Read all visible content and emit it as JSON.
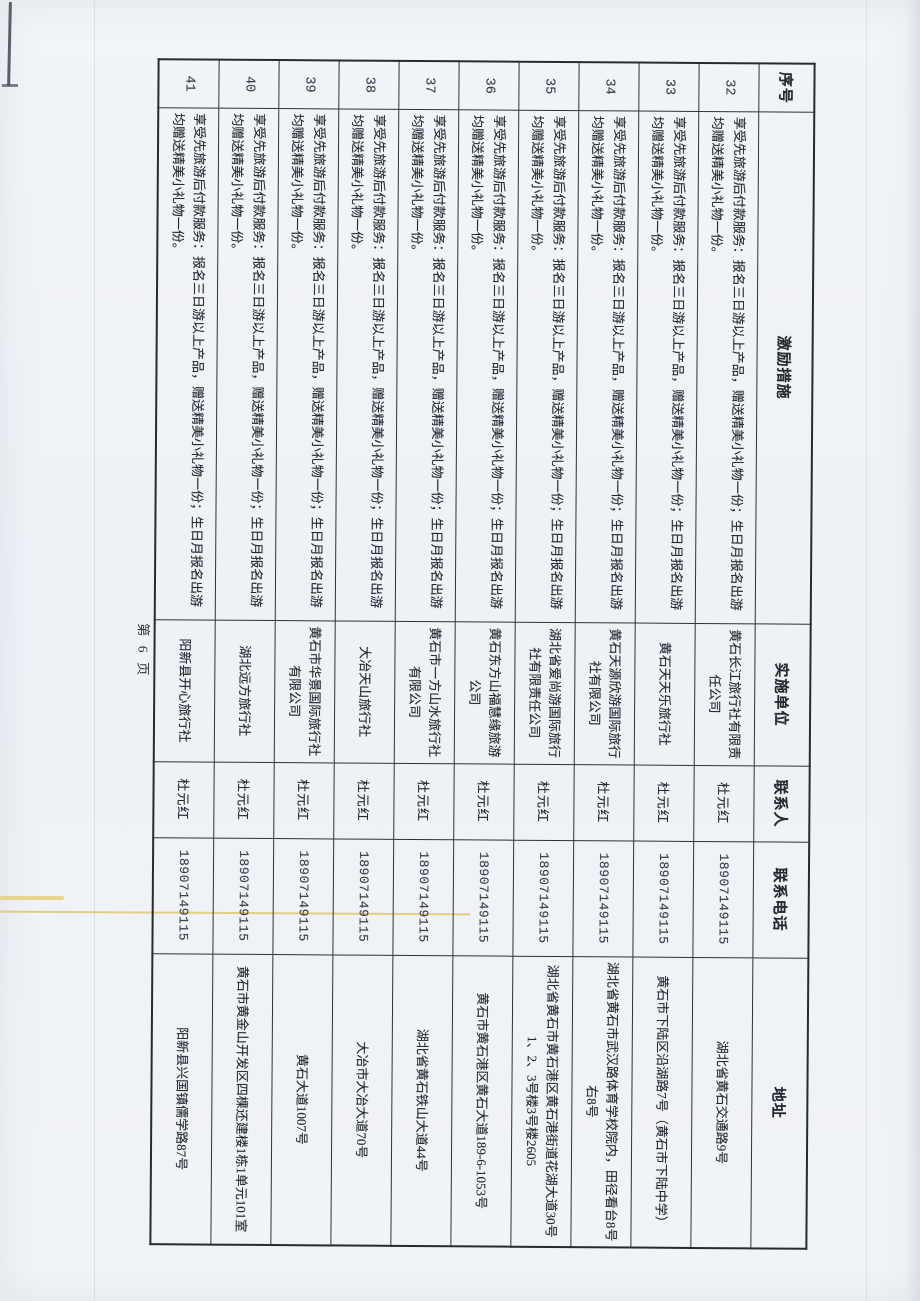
{
  "page": {
    "footer": "第 6 页",
    "page_number": "6"
  },
  "colors": {
    "paper": "#eff2f6",
    "ink": "#262a30",
    "border": "#2e3238",
    "highlight_streak": "#dbb534"
  },
  "table": {
    "columns": [
      "序号",
      "激励措施",
      "实施单位",
      "联系人",
      "联系电话",
      "地址"
    ],
    "rows": [
      {
        "no": "32",
        "incentive": "享受先旅游后付款服务：报名三日游以上产品，赠送精美小礼物一份；生日月报名出游均赠送精美小礼物一份。",
        "unit": "黄石长江旅行社有限责任公司",
        "contact": "杜元红",
        "phone": "18907149115",
        "address": "湖北省黄石交通路9号"
      },
      {
        "no": "33",
        "incentive": "享受先旅游后付款服务：报名三日游以上产品，赠送精美小礼物一份；生日月报名出游均赠送精美小礼物一份。",
        "unit": "黄石天天乐旅行社",
        "contact": "杜元红",
        "phone": "18907149115",
        "address": "黄石市下陆区沿湖路7号（黄石市下陆中学）"
      },
      {
        "no": "34",
        "incentive": "享受先旅游后付款服务：报名三日游以上产品，赠送精美小礼物一份；生日月报名出游均赠送精美小礼物一份。",
        "unit": "黄石天源欣游国际旅行社有限公司",
        "contact": "杜元红",
        "phone": "18907149115",
        "address": "湖北省黄石市武汉路体育学校院内，田径看台8号右8号"
      },
      {
        "no": "35",
        "incentive": "享受先旅游后付款服务：报名三日游以上产品，赠送精美小礼物一份；生日月报名出游均赠送精美小礼物一份。",
        "unit": "湖北省爱尚游国际旅行社有限责任公司",
        "contact": "杜元红",
        "phone": "18907149115",
        "address": "湖北省黄石市黄石港区黄石港街道花湖大道30号1、2、3号楼3号楼2605"
      },
      {
        "no": "36",
        "incentive": "享受先旅游后付款服务：报名三日游以上产品，赠送精美小礼物一份；生日月报名出游均赠送精美小礼物一份。",
        "unit": "黄石东方山福慧缘旅游公司",
        "contact": "杜元红",
        "phone": "18907149115",
        "address": "黄石市黄石港区黄石大道189-6-1053号"
      },
      {
        "no": "37",
        "incentive": "享受先旅游后付款服务：报名三日游以上产品，赠送精美小礼物一份；生日月报名出游均赠送精美小礼物一份。",
        "unit": "黄石市一方山水旅行社有限公司",
        "contact": "杜元红",
        "phone": "18907149115",
        "address": "湖北省黄石铁山大道44号"
      },
      {
        "no": "38",
        "incentive": "享受先旅游后付款服务：报名三日游以上产品，赠送精美小礼物一份；生日月报名出游均赠送精美小礼物一份。",
        "unit": "大冶天山旅行社",
        "contact": "杜元红",
        "phone": "18907149115",
        "address": "大冶市大冶大道70号"
      },
      {
        "no": "39",
        "incentive": "享受先旅游后付款服务：报名三日游以上产品，赠送精美小礼物一份；生日月报名出游均赠送精美小礼物一份。",
        "unit": "黄石市华景国际旅行社有限公司",
        "contact": "杜元红",
        "phone": "18907149115",
        "address": "黄石大道1007号"
      },
      {
        "no": "40",
        "incentive": "享受先旅游后付款服务：报名三日游以上产品，赠送精美小礼物一份；生日月报名出游均赠送精美小礼物一份。",
        "unit": "湖北远方旅行社",
        "contact": "杜元红",
        "phone": "18907149115",
        "address": "黄石市黄金山开发区四棵还建楼1栋1单元101室"
      },
      {
        "no": "41",
        "incentive": "享受先旅游后付款服务：报名三日游以上产品，赠送精美小礼物一份；生日月报名出游均赠送精美小礼物一份。",
        "unit": "阳新县开心旅行社",
        "contact": "杜元红",
        "phone": "18907149115",
        "address": "阳新县兴国镇儒学路87号"
      }
    ]
  }
}
